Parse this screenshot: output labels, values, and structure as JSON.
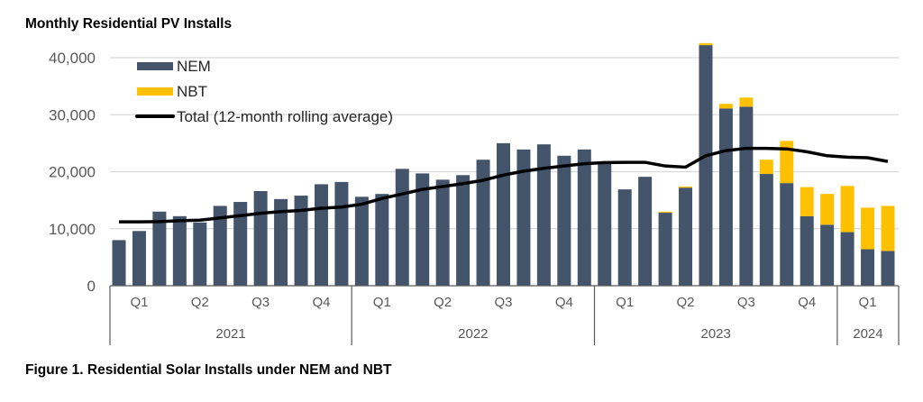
{
  "chart_data": {
    "type": "bar",
    "stacked": true,
    "title": "Monthly Residential PV Installs",
    "caption": "Figure 1. Residential Solar Installs under NEM and NBT",
    "ylim": [
      0,
      40000
    ],
    "yticks": [
      "0",
      "10,000",
      "20,000",
      "30,000",
      "40,000"
    ],
    "ytick_values": [
      0,
      10000,
      20000,
      30000,
      40000
    ],
    "grid": true,
    "legend_placement": "top-left",
    "years": [
      {
        "label": "2021",
        "quarters": [
          "Q1",
          "Q2",
          "Q3",
          "Q4"
        ]
      },
      {
        "label": "2022",
        "quarters": [
          "Q1",
          "Q2",
          "Q3",
          "Q4"
        ]
      },
      {
        "label": "2023",
        "quarters": [
          "Q1",
          "Q2",
          "Q3",
          "Q4"
        ]
      },
      {
        "label": "2024",
        "quarters": [
          "Q1"
        ]
      }
    ],
    "categories": [
      "2021-01",
      "2021-02",
      "2021-03",
      "2021-04",
      "2021-05",
      "2021-06",
      "2021-07",
      "2021-08",
      "2021-09",
      "2021-10",
      "2021-11",
      "2021-12",
      "2022-01",
      "2022-02",
      "2022-03",
      "2022-04",
      "2022-05",
      "2022-06",
      "2022-07",
      "2022-08",
      "2022-09",
      "2022-10",
      "2022-11",
      "2022-12",
      "2023-01",
      "2023-02",
      "2023-03",
      "2023-04",
      "2023-05",
      "2023-06",
      "2023-07",
      "2023-08",
      "2023-09",
      "2023-10",
      "2023-11",
      "2023-12",
      "2024-01",
      "2024-02",
      "2024-03"
    ],
    "series": [
      {
        "name": "NEM",
        "type": "bar",
        "color": "#44546A",
        "values": [
          8000,
          9600,
          13000,
          12200,
          11100,
          14000,
          14700,
          16600,
          15200,
          15800,
          17800,
          18200,
          15600,
          16100,
          20500,
          19700,
          18600,
          19400,
          22100,
          25000,
          23900,
          24800,
          22800,
          23900,
          21400,
          16900,
          19100,
          12800,
          17200,
          42200,
          31100,
          31400,
          19600,
          18000,
          12200,
          10700,
          9400,
          6400,
          6100
        ]
      },
      {
        "name": "NBT",
        "type": "bar",
        "color": "#FFC000",
        "values": [
          0,
          0,
          0,
          0,
          0,
          0,
          0,
          0,
          0,
          0,
          0,
          0,
          0,
          0,
          0,
          0,
          0,
          0,
          0,
          0,
          0,
          0,
          0,
          0,
          0,
          0,
          0,
          200,
          200,
          350,
          800,
          1600,
          2500,
          7400,
          5100,
          5400,
          8100,
          7300,
          7900
        ]
      },
      {
        "name": "Total (12-month rolling average)",
        "type": "line",
        "color": "#000000",
        "values": [
          11200,
          11200,
          11250,
          11400,
          11500,
          11900,
          12300,
          12700,
          13000,
          13200,
          13600,
          13800,
          14300,
          15300,
          16100,
          16900,
          17400,
          17900,
          18500,
          19400,
          20100,
          20600,
          21000,
          21400,
          21600,
          21650,
          21650,
          21000,
          20800,
          22800,
          23700,
          24100,
          24100,
          24000,
          23500,
          22800,
          22550,
          22450,
          21800
        ]
      }
    ]
  }
}
